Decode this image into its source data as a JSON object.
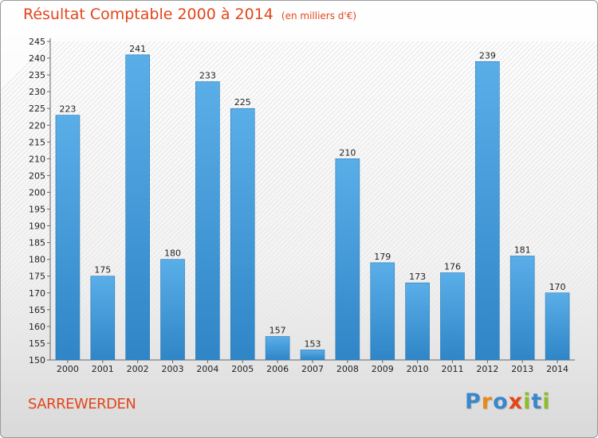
{
  "title": "Résultat Comptable 2000 à 2014",
  "unit": "(en milliers d'€)",
  "place": "SARREWERDEN",
  "logo": [
    "P",
    "r",
    "o",
    "x",
    "i",
    "t",
    "i"
  ],
  "logo_colors": [
    "#3a87c9",
    "#e8891c",
    "#3a87c9",
    "#e3461b",
    "#8cbd2c",
    "#3a87c9",
    "#8cbd2c"
  ],
  "colors": {
    "bar_top": "#5aaee8",
    "bar_bottom": "#2f85c6",
    "title": "#e3461b"
  },
  "chart_data": {
    "type": "bar",
    "categories": [
      "2000",
      "2001",
      "2002",
      "2003",
      "2004",
      "2005",
      "2006",
      "2007",
      "2008",
      "2009",
      "2010",
      "2011",
      "2012",
      "2013",
      "2014"
    ],
    "values": [
      223,
      175,
      241,
      180,
      233,
      225,
      157,
      153,
      210,
      179,
      173,
      176,
      239,
      181,
      170
    ],
    "ylim": [
      150,
      245
    ],
    "yticks": [
      150,
      155,
      160,
      165,
      170,
      175,
      180,
      185,
      190,
      195,
      200,
      205,
      210,
      215,
      220,
      225,
      230,
      235,
      240,
      245
    ],
    "grid": false,
    "xlabel": "",
    "ylabel": ""
  }
}
